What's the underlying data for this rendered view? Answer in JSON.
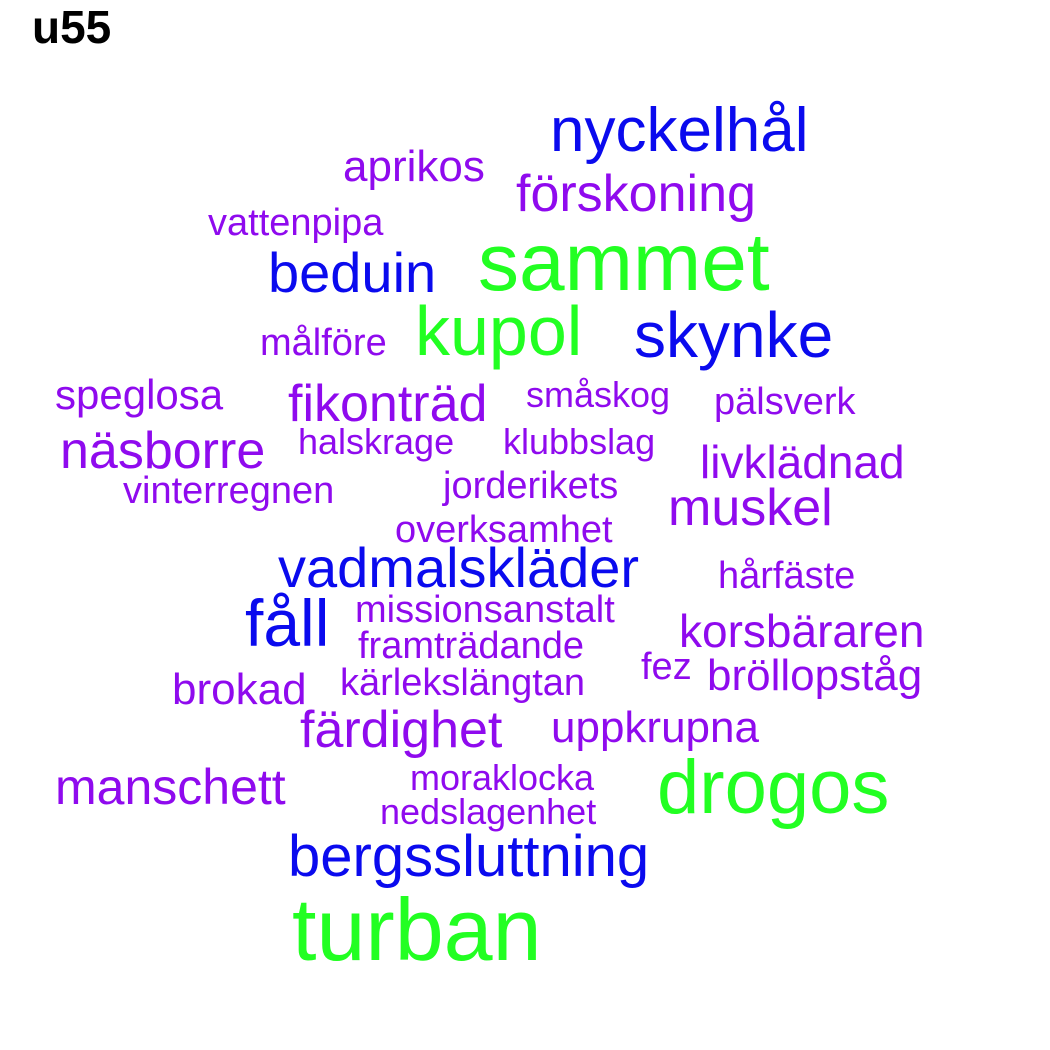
{
  "title": "u55",
  "colors": {
    "green": "#22ff22",
    "blue": "#0a0aee",
    "purple": "#8f0aee"
  },
  "words": [
    {
      "text": "nyckelhål",
      "color": "blue"
    },
    {
      "text": "aprikos",
      "color": "purple"
    },
    {
      "text": "förskoning",
      "color": "purple"
    },
    {
      "text": "vattenpipa",
      "color": "purple"
    },
    {
      "text": "sammet",
      "color": "green"
    },
    {
      "text": "beduin",
      "color": "blue"
    },
    {
      "text": "kupol",
      "color": "green"
    },
    {
      "text": "skynke",
      "color": "blue"
    },
    {
      "text": "målföre",
      "color": "purple"
    },
    {
      "text": "speglosa",
      "color": "purple"
    },
    {
      "text": "fikonträd",
      "color": "purple"
    },
    {
      "text": "småskog",
      "color": "purple"
    },
    {
      "text": "pälsverk",
      "color": "purple"
    },
    {
      "text": "näsborre",
      "color": "purple"
    },
    {
      "text": "halskrage",
      "color": "purple"
    },
    {
      "text": "klubbslag",
      "color": "purple"
    },
    {
      "text": "livklädnad",
      "color": "purple"
    },
    {
      "text": "vinterregnen",
      "color": "purple"
    },
    {
      "text": "jorderikets",
      "color": "purple"
    },
    {
      "text": "muskel",
      "color": "purple"
    },
    {
      "text": "overksamhet",
      "color": "purple"
    },
    {
      "text": "vadmalskläder",
      "color": "blue"
    },
    {
      "text": "hårfäste",
      "color": "purple"
    },
    {
      "text": "fåll",
      "color": "blue"
    },
    {
      "text": "missionsanstalt",
      "color": "purple"
    },
    {
      "text": "framträdande",
      "color": "purple"
    },
    {
      "text": "korsbäraren",
      "color": "purple"
    },
    {
      "text": "fez",
      "color": "purple"
    },
    {
      "text": "bröllopståg",
      "color": "purple"
    },
    {
      "text": "brokad",
      "color": "purple"
    },
    {
      "text": "kärlekslängtan",
      "color": "purple"
    },
    {
      "text": "färdighet",
      "color": "purple"
    },
    {
      "text": "uppkrupna",
      "color": "purple"
    },
    {
      "text": "moraklocka",
      "color": "purple"
    },
    {
      "text": "manschett",
      "color": "purple"
    },
    {
      "text": "drogos",
      "color": "green"
    },
    {
      "text": "nedslagenhet",
      "color": "purple"
    },
    {
      "text": "bergssluttning",
      "color": "blue"
    },
    {
      "text": "turban",
      "color": "green"
    }
  ]
}
